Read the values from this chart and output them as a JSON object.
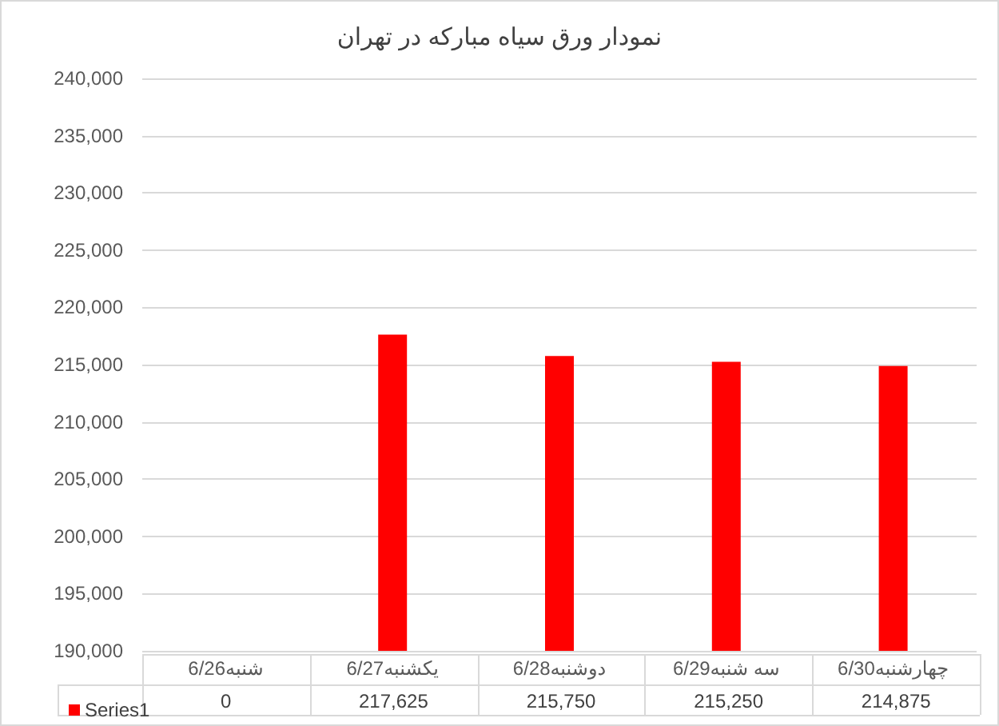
{
  "chart_data": {
    "type": "bar",
    "title": "نمودار ورق سیاه مبارکه در تهران",
    "categories": [
      "شنبه6/26",
      "یکشنبه6/27",
      "دوشنبه6/28",
      "سه شنبه6/29",
      "چهارشنبه6/30"
    ],
    "series": [
      {
        "name": "Series1",
        "color": "#ff0000",
        "values": [
          null,
          217625,
          215750,
          215250,
          214875
        ],
        "value_labels": [
          "0",
          "217,625",
          "215,750",
          "215,250",
          "214,875"
        ]
      }
    ],
    "ylim": [
      190000,
      240000
    ],
    "yticks": [
      {
        "value": 190000,
        "label": "190,000"
      },
      {
        "value": 195000,
        "label": "195,000"
      },
      {
        "value": 200000,
        "label": "200,000"
      },
      {
        "value": 205000,
        "label": "205,000"
      },
      {
        "value": 210000,
        "label": "210,000"
      },
      {
        "value": 215000,
        "label": "215,000"
      },
      {
        "value": 220000,
        "label": "220,000"
      },
      {
        "value": 225000,
        "label": "225,000"
      },
      {
        "value": 230000,
        "label": "230,000"
      },
      {
        "value": 235000,
        "label": "235,000"
      },
      {
        "value": 240000,
        "label": "240,000"
      }
    ],
    "grid": "y",
    "legend": "bottom"
  }
}
